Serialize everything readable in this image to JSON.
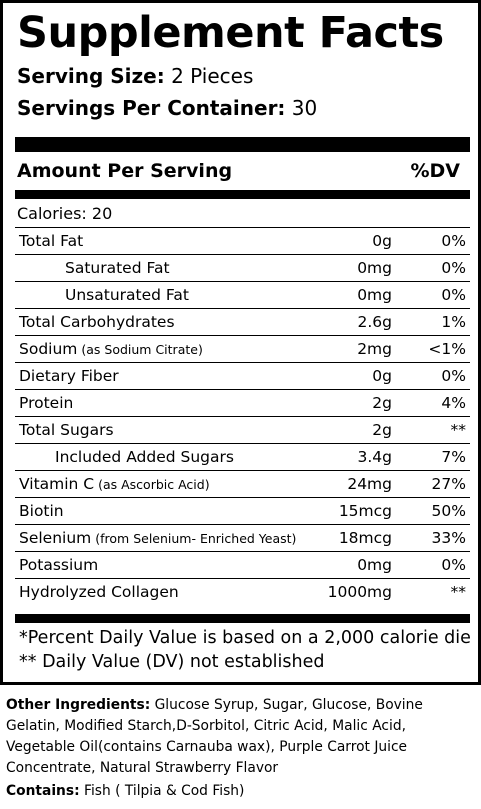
{
  "title": "Supplement Facts",
  "serving_size": {
    "label": "Serving Size:",
    "value": " 2 Pieces"
  },
  "servings_per_container": {
    "label": "Servings Per Container:",
    "value": " 30"
  },
  "header": {
    "amount": "Amount Per Serving",
    "dv": "%DV"
  },
  "calories": "Calories: 20",
  "nutrients": [
    {
      "name": "Total Fat",
      "sub": "",
      "amount": "0g",
      "dv": "0%",
      "indent": ""
    },
    {
      "name": "Saturated Fat",
      "sub": "",
      "amount": "0mg",
      "dv": "0%",
      "indent": "indent"
    },
    {
      "name": "Unsaturated Fat",
      "sub": "",
      "amount": "0mg",
      "dv": "0%",
      "indent": "indent"
    },
    {
      "name": "Total Carbohydrates",
      "sub": "",
      "amount": "2.6g",
      "dv": "1%",
      "indent": ""
    },
    {
      "name": "Sodium",
      "sub": " (as Sodium Citrate)",
      "amount": "2mg",
      "dv": "<1%",
      "indent": ""
    },
    {
      "name": "Dietary Fiber",
      "sub": "",
      "amount": "0g",
      "dv": "0%",
      "indent": ""
    },
    {
      "name": "Protein",
      "sub": "",
      "amount": "2g",
      "dv": "4%",
      "indent": ""
    },
    {
      "name": "Total Sugars",
      "sub": "",
      "amount": "2g",
      "dv": "**",
      "indent": ""
    },
    {
      "name": "Included Added Sugars",
      "sub": "",
      "amount": "3.4g",
      "dv": "7%",
      "indent": "indent2"
    },
    {
      "name": "Vitamin C",
      "sub": " (as Ascorbic Acid)",
      "amount": "24mg",
      "dv": "27%",
      "indent": ""
    },
    {
      "name": "Biotin",
      "sub": "",
      "amount": "15mcg",
      "dv": "50%",
      "indent": ""
    },
    {
      "name": "Selenium",
      "sub": " (from Selenium- Enriched Yeast)",
      "amount": "18mcg",
      "dv": "33%",
      "indent": ""
    },
    {
      "name": "Potassium",
      "sub": "",
      "amount": "0mg",
      "dv": "0%",
      "indent": ""
    },
    {
      "name": "Hydrolyzed Collagen",
      "sub": "",
      "amount": "1000mg",
      "dv": "**",
      "indent": ""
    }
  ],
  "footnotes": {
    "percent_dv": "*Percent Daily Value is based on a 2,000 calorie die",
    "dv_not_established": "** Daily Value (DV) not established"
  },
  "ingredients": {
    "label": "Other Ingredients:",
    "text": " Glucose Syrup, Sugar, Glucose, Bovine Gelatin, Modified Starch,D-Sorbitol, Citric Acid, Malic Acid, Vegetable Oil(contains Carnauba wax), Purple Carrot Juice Concentrate, Natural Strawberry Flavor"
  },
  "contains": {
    "label": "Contains:",
    "text": " Fish ( Tilpia & Cod Fish)"
  }
}
